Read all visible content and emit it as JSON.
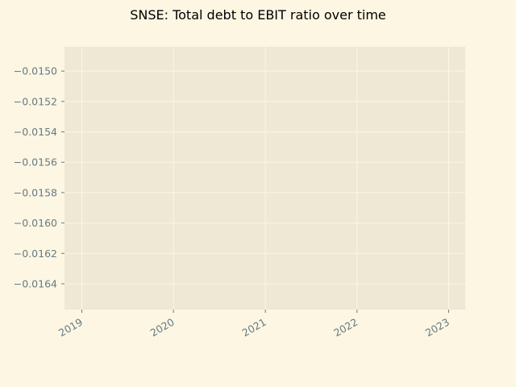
{
  "chart_data": {
    "type": "line",
    "title": "SNSE: Total debt to EBIT ratio over time",
    "xlabel": "",
    "ylabel": "",
    "x_tick_labels": [
      "2019",
      "2020",
      "2021",
      "2022",
      "2023"
    ],
    "y_tick_labels": [
      "−0.0150",
      "−0.0152",
      "−0.0154",
      "−0.0156",
      "−0.0158",
      "−0.0160",
      "−0.0162",
      "−0.0164"
    ],
    "y_ticks": [
      -0.015,
      -0.0152,
      -0.0154,
      -0.0156,
      -0.0158,
      -0.016,
      -0.0162,
      -0.0164
    ],
    "ylim": [
      -0.01657,
      -0.01484
    ],
    "xlim": [
      "2018-10-24",
      "2023-03-08"
    ],
    "grid": true,
    "series": []
  },
  "colors": {
    "figure_background": "#fdf6e3",
    "axes_background": "#eee8d5",
    "grid": "#fdf6e3",
    "tick_text": "#657b83",
    "title_text": "#000000"
  }
}
